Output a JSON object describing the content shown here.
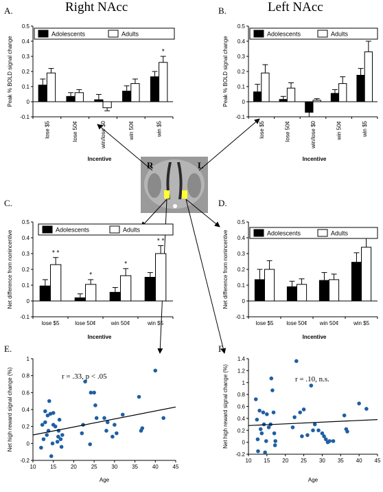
{
  "titles": {
    "right": "Right NAcc",
    "left": "Left NAcc"
  },
  "brain": {
    "r_label": "R",
    "l_label": "L",
    "highlight_color": "#ffff33"
  },
  "colors": {
    "adolescents": "#000000",
    "adults": "#ffffff",
    "scatter": "#1f5fa3"
  },
  "chart_data": [
    {
      "id": "A",
      "panel_label": "A.",
      "type": "bar",
      "ylabel": "Peak % BOLD signal change",
      "xlabel": "Incentive",
      "ylim": [
        -0.1,
        0.5
      ],
      "yticks": [
        "-0.1",
        "0",
        "0.1",
        "0.2",
        "0.3",
        "0.4",
        "0.5"
      ],
      "categories": [
        "lose $5",
        "lose 50¢",
        "win/lose $0",
        "win 50¢",
        "win $5"
      ],
      "legend": [
        "Adolescents",
        "Adults"
      ],
      "series": [
        {
          "name": "Adolescents",
          "values": [
            0.11,
            0.035,
            0.013,
            0.07,
            0.165
          ],
          "errors": [
            0.04,
            0.025,
            0.035,
            0.035,
            0.035
          ]
        },
        {
          "name": "Adults",
          "values": [
            0.19,
            0.06,
            -0.04,
            0.12,
            0.26
          ],
          "errors": [
            0.03,
            0.02,
            0.02,
            0.03,
            0.04
          ]
        }
      ],
      "stars": [
        "",
        "",
        "",
        "",
        "*"
      ]
    },
    {
      "id": "B",
      "panel_label": "B.",
      "type": "bar",
      "ylabel": "Peak % BOLD signal change",
      "xlabel": "Incentive",
      "ylim": [
        -0.1,
        0.5
      ],
      "yticks": [
        "-0.1",
        "0",
        "0.1",
        "0.2",
        "0.3",
        "0.4",
        "0.5"
      ],
      "categories": [
        "lose $5",
        "lose 50¢",
        "win/lose $0",
        "win 50¢",
        "win $5"
      ],
      "legend": [
        "Adolescents",
        "Adults"
      ],
      "series": [
        {
          "name": "Adolescents",
          "values": [
            0.065,
            0.015,
            -0.07,
            0.055,
            0.175
          ],
          "errors": [
            0.05,
            0.02,
            0.03,
            0.025,
            0.045
          ]
        },
        {
          "name": "Adults",
          "values": [
            0.19,
            0.09,
            0.01,
            0.12,
            0.33
          ],
          "errors": [
            0.055,
            0.035,
            0.01,
            0.045,
            0.07
          ]
        }
      ],
      "stars": [
        "",
        "",
        "",
        "",
        "*"
      ]
    },
    {
      "id": "C",
      "panel_label": "C.",
      "type": "bar",
      "ylabel": "Net difference from nonincentive",
      "xlabel": "Incentive",
      "ylim": [
        -0.1,
        0.5
      ],
      "yticks": [
        "-0.1",
        "0",
        "0.1",
        "0.2",
        "0.3",
        "0.4",
        "0.5"
      ],
      "categories": [
        "lose $5",
        "lose 50¢",
        "win 50¢",
        "win $5"
      ],
      "legend": [
        "Adolescents",
        "Adults"
      ],
      "series": [
        {
          "name": "Adolescents",
          "values": [
            0.095,
            0.02,
            0.055,
            0.15
          ],
          "errors": [
            0.04,
            0.025,
            0.03,
            0.03
          ]
        },
        {
          "name": "Adults",
          "values": [
            0.23,
            0.105,
            0.16,
            0.3
          ],
          "errors": [
            0.045,
            0.03,
            0.045,
            0.05
          ]
        }
      ],
      "stars": [
        "* *",
        "*",
        "*",
        "* *"
      ]
    },
    {
      "id": "D",
      "panel_label": "D.",
      "type": "bar",
      "ylabel": "Net difference from nonincentive",
      "xlabel": "Incentive",
      "ylim": [
        -0.1,
        0.5
      ],
      "yticks": [
        "-0.1",
        "0",
        "0.1",
        "0.2",
        "0.3",
        "0.4",
        "0.5"
      ],
      "categories": [
        "lose $5",
        "lose 50¢",
        "win 50¢",
        "win $5"
      ],
      "legend": [
        "Adolescents",
        "Adults"
      ],
      "series": [
        {
          "name": "Adolescents",
          "values": [
            0.135,
            0.09,
            0.13,
            0.245
          ],
          "errors": [
            0.065,
            0.035,
            0.05,
            0.06
          ]
        },
        {
          "name": "Adults",
          "values": [
            0.2,
            0.105,
            0.135,
            0.34
          ],
          "errors": [
            0.055,
            0.035,
            0.035,
            0.065
          ]
        }
      ],
      "stars": [
        "",
        "",
        "",
        ""
      ]
    },
    {
      "id": "E",
      "panel_label": "E.",
      "type": "scatter",
      "ylabel": "Net high reward signal change (%)",
      "xlabel": "Age",
      "xlim": [
        10,
        45
      ],
      "ylim": [
        -0.2,
        1.0
      ],
      "xticks": [
        "10",
        "15",
        "20",
        "25",
        "30",
        "35",
        "40",
        "45"
      ],
      "yticks": [
        "-0.2",
        "0",
        "0.2",
        "0.4",
        "0.6",
        "0.8",
        "1"
      ],
      "annotation": "r = .33, p < .05",
      "trend": {
        "x": [
          10,
          45
        ],
        "y": [
          0.1,
          0.43
        ]
      },
      "points": [
        [
          12,
          -0.05
        ],
        [
          12.3,
          0.22
        ],
        [
          12.6,
          0.05
        ],
        [
          13,
          0.25
        ],
        [
          13,
          0.38
        ],
        [
          13.4,
          0.1
        ],
        [
          13.6,
          0.33
        ],
        [
          13.8,
          0.15
        ],
        [
          14,
          0.5
        ],
        [
          14.3,
          0.35
        ],
        [
          14.5,
          -0.15
        ],
        [
          14.8,
          0.0
        ],
        [
          15,
          0.22
        ],
        [
          15,
          0.36
        ],
        [
          15.5,
          0.2
        ],
        [
          16,
          0.02
        ],
        [
          16.2,
          0.08
        ],
        [
          16.3,
          0.15
        ],
        [
          16.5,
          0.28
        ],
        [
          16.8,
          0.05
        ],
        [
          17,
          -0.04
        ],
        [
          17.2,
          0.1
        ],
        [
          22,
          0.12
        ],
        [
          22.3,
          0.22
        ],
        [
          22.8,
          0.73
        ],
        [
          24,
          -0.01
        ],
        [
          24.2,
          0.6
        ],
        [
          25,
          0.6
        ],
        [
          25.3,
          0.45
        ],
        [
          25.6,
          0.3
        ],
        [
          27.5,
          0.3
        ],
        [
          28,
          0.15
        ],
        [
          28.3,
          0.25
        ],
        [
          29.5,
          0.08
        ],
        [
          30,
          0.22
        ],
        [
          30.5,
          0.12
        ],
        [
          32,
          0.34
        ],
        [
          36,
          0.55
        ],
        [
          36.5,
          0.15
        ],
        [
          36.8,
          0.18
        ],
        [
          40,
          0.86
        ],
        [
          42,
          0.3
        ]
      ]
    },
    {
      "id": "F",
      "panel_label": "F.",
      "type": "scatter",
      "ylabel": "Net high reward signal change (%)",
      "xlabel": "Age",
      "xlim": [
        10,
        45
      ],
      "ylim": [
        -0.2,
        1.4
      ],
      "xticks": [
        "10",
        "15",
        "20",
        "25",
        "30",
        "35",
        "40",
        "45"
      ],
      "yticks": [
        "-0.2",
        "0",
        "0.2",
        "0.4",
        "0.6",
        "0.8",
        "1",
        "1.2",
        "1.4"
      ],
      "annotation": "r = .10, n.s.",
      "trend": {
        "x": [
          10,
          45
        ],
        "y": [
          0.28,
          0.38
        ]
      },
      "points": [
        [
          12,
          0.72
        ],
        [
          12.3,
          0.38
        ],
        [
          12.5,
          0.05
        ],
        [
          12.6,
          -0.15
        ],
        [
          13,
          0.53
        ],
        [
          13.3,
          0.22
        ],
        [
          13.6,
          0.15
        ],
        [
          14,
          0.5
        ],
        [
          14.2,
          0.3
        ],
        [
          14.5,
          -0.17
        ],
        [
          14.8,
          0.02
        ],
        [
          15,
          0.47
        ],
        [
          15.5,
          0.25
        ],
        [
          16,
          0.3
        ],
        [
          16.2,
          1.07
        ],
        [
          16.5,
          0.87
        ],
        [
          16.8,
          0.5
        ],
        [
          17,
          0.15
        ],
        [
          17.2,
          -0.05
        ],
        [
          17.3,
          0.02
        ],
        [
          22,
          0.25
        ],
        [
          22.5,
          0.42
        ],
        [
          23,
          1.36
        ],
        [
          24,
          0.5
        ],
        [
          24.5,
          0.1
        ],
        [
          25,
          0.55
        ],
        [
          26,
          0.12
        ],
        [
          27,
          0.95
        ],
        [
          27.5,
          0.2
        ],
        [
          28,
          0.3
        ],
        [
          29,
          0.2
        ],
        [
          30,
          0.15
        ],
        [
          30.5,
          0.1
        ],
        [
          31,
          0.05
        ],
        [
          31.5,
          0.0
        ],
        [
          32,
          0.02
        ],
        [
          33,
          0.02
        ],
        [
          36,
          0.45
        ],
        [
          36.5,
          0.22
        ],
        [
          36.8,
          0.18
        ],
        [
          40,
          0.65
        ],
        [
          42,
          0.56
        ]
      ]
    }
  ]
}
